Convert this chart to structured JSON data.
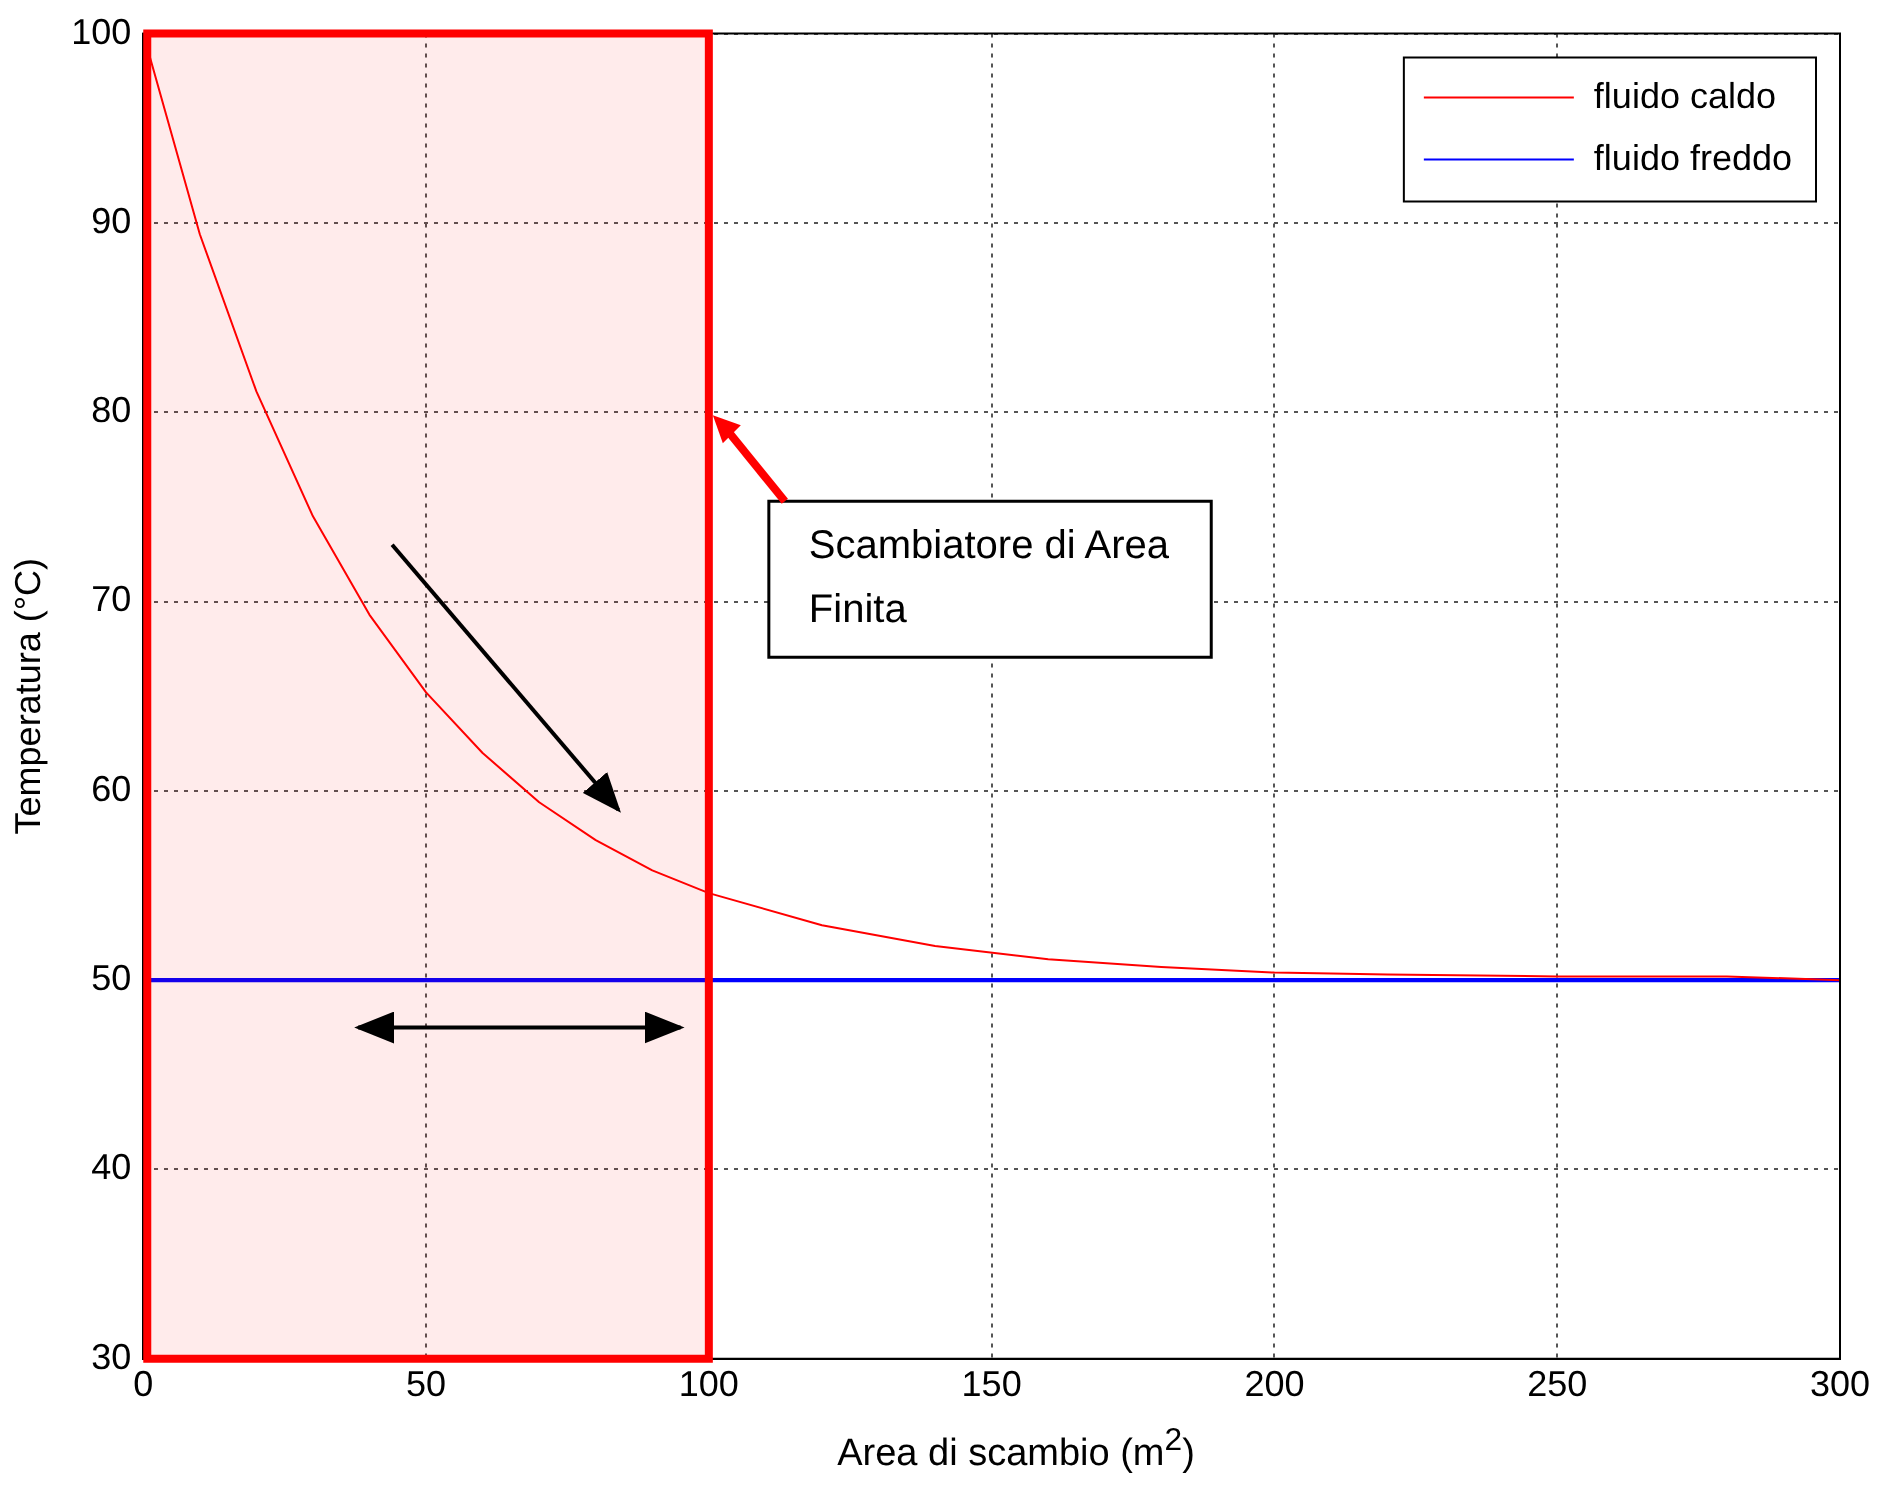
{
  "chart_data": {
    "type": "line",
    "xlabel": "Area di scambio (m$^{2}$)",
    "ylabel": "Temperatura (°C)",
    "xlim": [
      0,
      300
    ],
    "xticks": [
      0,
      50,
      100,
      150,
      200,
      250,
      300
    ],
    "ylim": [
      30,
      100
    ],
    "yticks": [
      30,
      40,
      50,
      60,
      70,
      80,
      90,
      100
    ],
    "grid": true,
    "legend": "top right",
    "marker": "none",
    "line_style": "solid",
    "series": [
      {
        "name": "fluido caldo",
        "color": "#ff0000",
        "x": [
          0,
          10,
          20,
          30,
          40,
          50,
          60,
          70,
          80,
          90,
          100,
          120,
          140,
          160,
          180,
          200,
          220,
          250,
          280,
          300
        ],
        "values": [
          100,
          89.4,
          81.1,
          74.5,
          69.3,
          65.2,
          62.0,
          59.4,
          57.4,
          55.8,
          54.6,
          52.9,
          51.8,
          51.1,
          50.7,
          50.4,
          50.3,
          50.2,
          50.2,
          50.0
        ]
      },
      {
        "name": "fluido freddo",
        "color": "#0000ff",
        "x": [
          0,
          300
        ],
        "values": [
          50,
          50
        ]
      }
    ],
    "bands": [
      {
        "axis": "x",
        "from": 0,
        "to": 100,
        "color": "#ff0000"
      }
    ],
    "annotations": [
      {
        "text": "Scambiatore di Area Finita",
        "x": 100
      }
    ]
  }
}
